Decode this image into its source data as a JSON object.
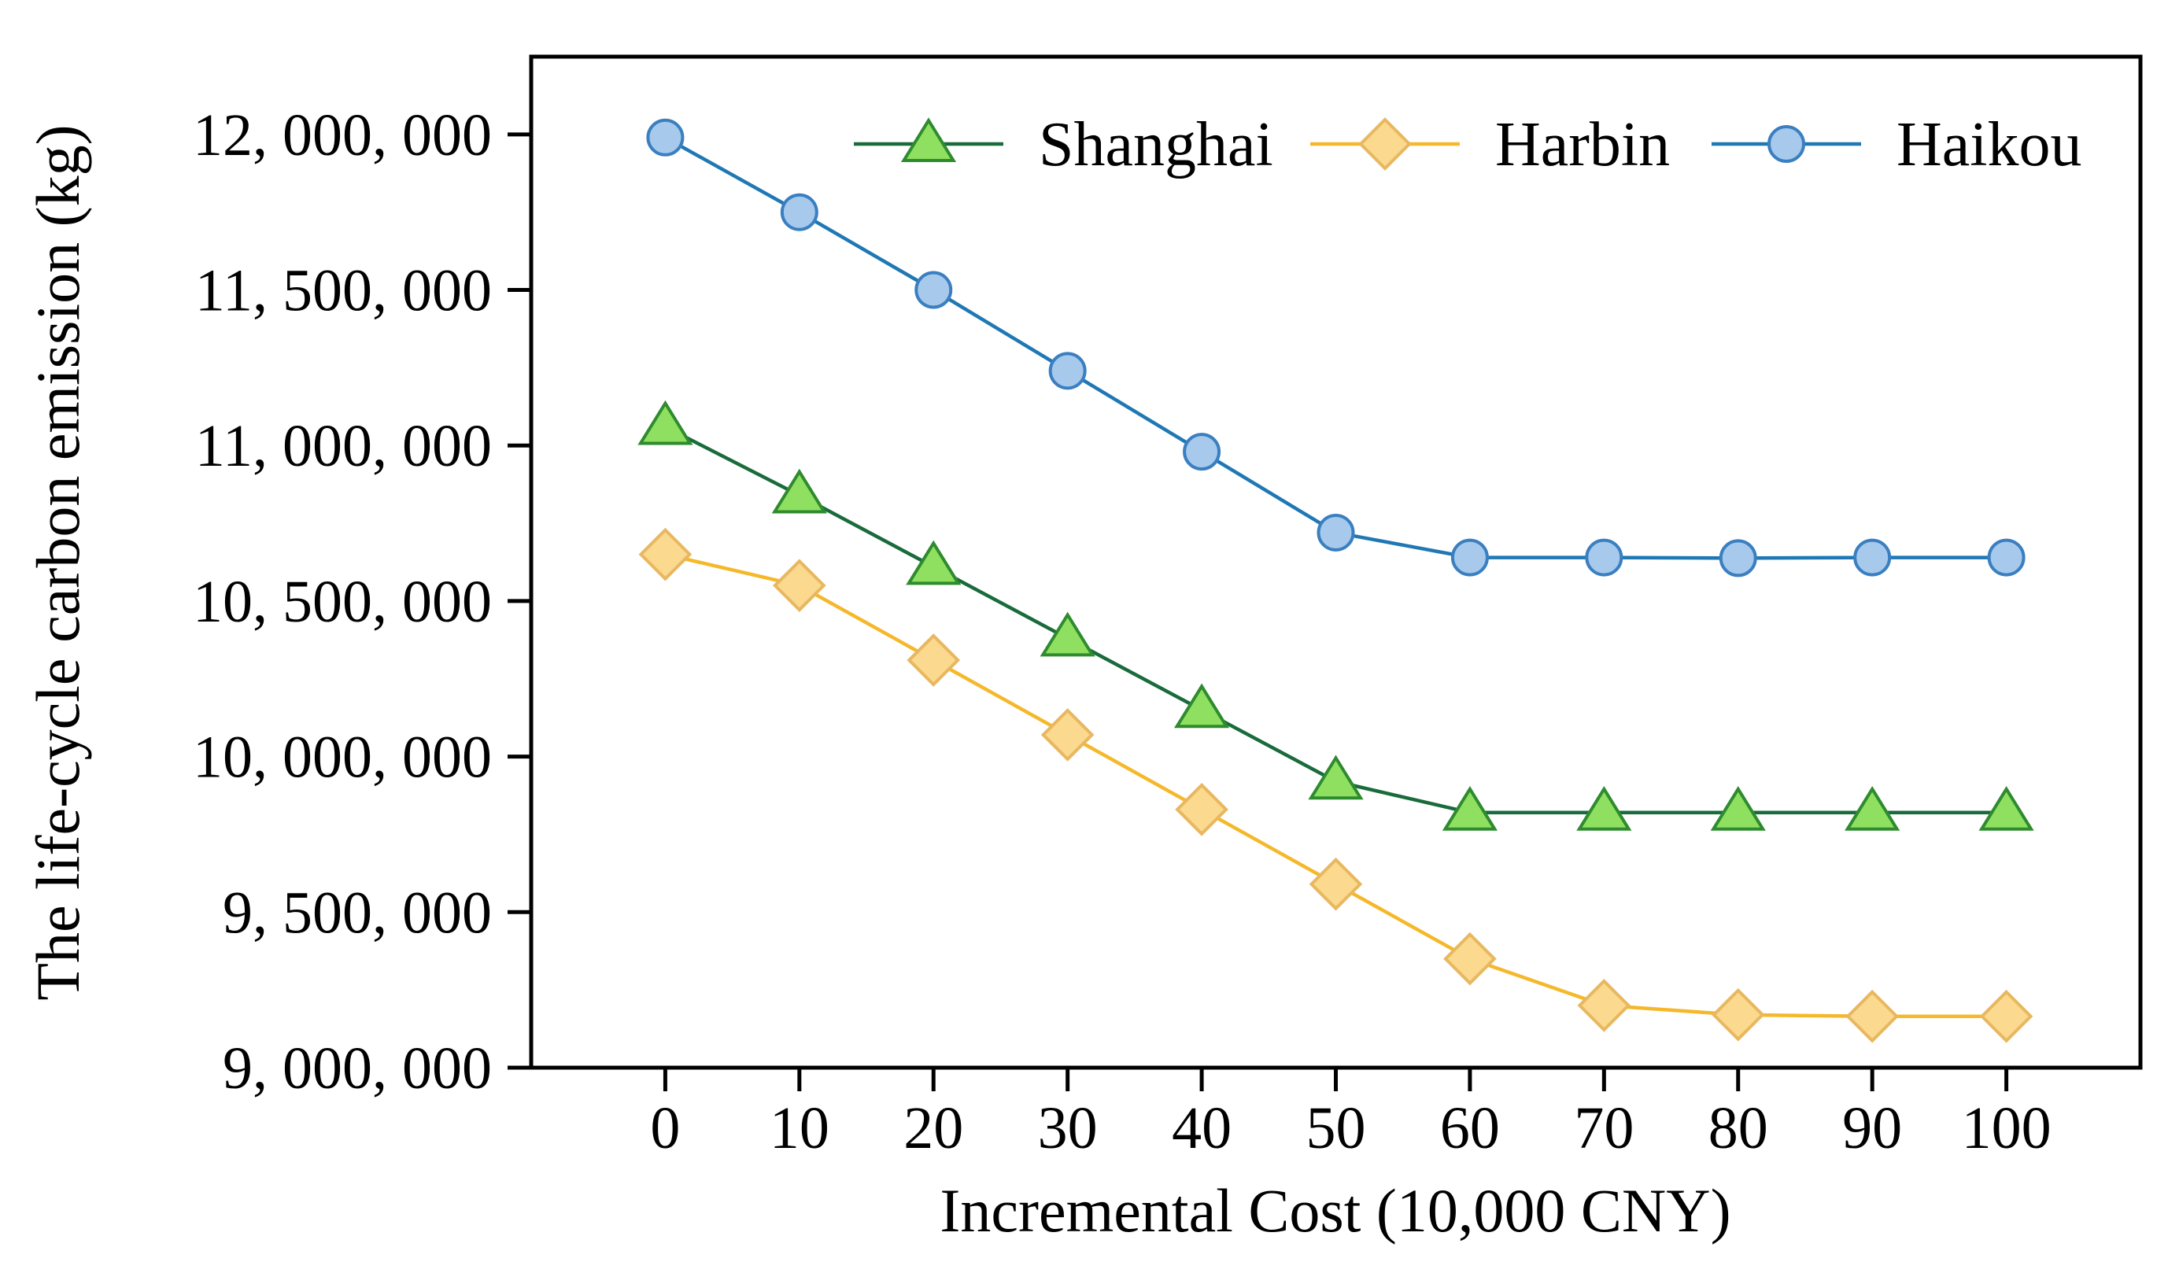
{
  "chart_data": {
    "type": "line",
    "title": "",
    "xlabel": "Incremental Cost (10,000 CNY)",
    "ylabel": "The life-cycle carbon emission (kg)",
    "x": [
      0,
      10,
      20,
      30,
      40,
      50,
      60,
      70,
      80,
      90,
      100
    ],
    "x_tick_labels": [
      "0",
      "10",
      "20",
      "30",
      "40",
      "50",
      "60",
      "70",
      "80",
      "90",
      "100"
    ],
    "xlim": [
      -10,
      110
    ],
    "ylim": [
      9000000,
      12250000
    ],
    "y_ticks": [
      9000000,
      9500000,
      10000000,
      10500000,
      11000000,
      11500000,
      12000000
    ],
    "y_tick_labels": [
      "9, 000, 000",
      "9, 500, 000",
      "10, 000, 000",
      "10, 500, 000",
      "11, 000, 000",
      "11, 500, 000",
      "12, 000, 000"
    ],
    "grid": false,
    "legend_position": "top-right",
    "series": [
      {
        "name": "Shanghai",
        "marker": "triangle",
        "line_color": "#1a6b3c",
        "marker_fill": "#8fe060",
        "marker_edge": "#2e8b2e",
        "values": [
          11060000,
          10840000,
          10610000,
          10380000,
          10150000,
          9920000,
          9820000,
          9820000,
          9820000,
          9820000,
          9820000
        ]
      },
      {
        "name": "Harbin",
        "marker": "diamond",
        "line_color": "#f5b82a",
        "marker_fill": "#fbd98f",
        "marker_edge": "#e8b860",
        "values": [
          10650000,
          10550000,
          10310000,
          10070000,
          9830000,
          9590000,
          9350000,
          9200000,
          9170000,
          9165000,
          9165000
        ]
      },
      {
        "name": "Haikou",
        "marker": "circle",
        "line_color": "#1f78b4",
        "marker_fill": "#a7c9ec",
        "marker_edge": "#3a7fc0",
        "values": [
          11990000,
          11750000,
          11500000,
          11240000,
          10980000,
          10720000,
          10640000,
          10640000,
          10638000,
          10640000,
          10640000
        ]
      }
    ]
  }
}
